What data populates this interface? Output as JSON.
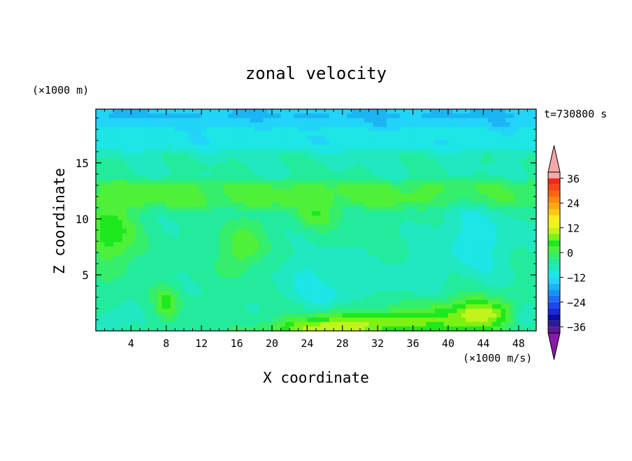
{
  "chart_data": {
    "type": "heatmap",
    "title": "zonal velocity",
    "xlabel": "X coordinate",
    "ylabel": "Z coordinate",
    "x_unit": "(×1000 m/s)",
    "y_unit": "(×1000 m)",
    "time_label": "t=730800 s",
    "xlim": [
      0,
      50
    ],
    "ylim": [
      0,
      19.8
    ],
    "x_ticks": [
      4,
      8,
      12,
      16,
      20,
      24,
      28,
      32,
      36,
      40,
      44,
      48
    ],
    "y_ticks": [
      5,
      10,
      15
    ],
    "colorbar": {
      "levels": [
        -42,
        -39,
        -36,
        -33,
        -30,
        -27,
        -24,
        -21,
        -18,
        -15,
        -12,
        -9,
        -6,
        -3,
        0,
        3,
        6,
        9,
        12,
        15,
        18,
        21,
        24,
        27,
        30,
        33,
        36,
        39,
        42
      ],
      "tick_labels": [
        "36",
        "24",
        "12",
        "0",
        "−12",
        "−24",
        "−36"
      ],
      "tick_values": [
        36,
        24,
        12,
        0,
        -12,
        -24,
        -36
      ],
      "colors": [
        "#8a18a6",
        "#5a1a9a",
        "#2a1a92",
        "#0e0ca6",
        "#1a2ad2",
        "#1c46f0",
        "#1e6cf6",
        "#1892ee",
        "#1cb4f4",
        "#22d4f8",
        "#1ce6e6",
        "#20e8c0",
        "#22ec9c",
        "#34ee6c",
        "#4ef03a",
        "#1ee81e",
        "#7cf214",
        "#c0f41a",
        "#ecf418",
        "#fcec1e",
        "#fcc814",
        "#fca812",
        "#fc8a10",
        "#fc6410",
        "#f84818",
        "#f02a18",
        "#f4a8a8"
      ],
      "under_color": "#8a18a6",
      "over_color": "#f4a8a8"
    },
    "field": {
      "background_value": -5,
      "features": [
        {
          "x": 25.5,
          "z": 4.0,
          "rx": 3.0,
          "rz": 1.6,
          "value": -14
        },
        {
          "x": 25.5,
          "z": 4.3,
          "rx": 5.5,
          "rz": 3.0,
          "value": -9
        },
        {
          "x": 43.0,
          "z": 8.0,
          "rx": 5.0,
          "rz": 3.5,
          "value": -11
        },
        {
          "x": 42.0,
          "z": 1.2,
          "rx": 6.0,
          "rz": 1.8,
          "value": 8
        },
        {
          "x": 44.0,
          "z": 1.5,
          "rx": 2.5,
          "rz": 1.0,
          "value": 12
        },
        {
          "x": 31.0,
          "z": 0.7,
          "rx": 9.0,
          "rz": 1.2,
          "value": 9
        },
        {
          "x": 26.0,
          "z": 0.3,
          "rx": 6.0,
          "rz": 0.6,
          "value": 11
        },
        {
          "x": 2.0,
          "z": 8.5,
          "rx": 3.0,
          "rz": 3.5,
          "value": 3
        },
        {
          "x": 1.5,
          "z": 9.0,
          "rx": 1.5,
          "rz": 2.0,
          "value": 6
        },
        {
          "x": 16.5,
          "z": 7.5,
          "rx": 2.5,
          "rz": 2.5,
          "value": 3
        },
        {
          "x": 25.0,
          "z": 10.5,
          "rx": 3.0,
          "rz": 1.5,
          "value": 2
        },
        {
          "x": 8.0,
          "z": 2.5,
          "rx": 1.5,
          "rz": 1.5,
          "value": 4
        },
        {
          "x": 1.5,
          "z": 0.8,
          "rx": 2.0,
          "rz": 1.0,
          "value": -10
        },
        {
          "x": 49.0,
          "z": 1.5,
          "rx": 1.5,
          "rz": 1.5,
          "value": -9
        },
        {
          "x": 36.0,
          "z": 5.0,
          "rx": 4.0,
          "rz": 2.0,
          "value": -8
        }
      ],
      "bands": [
        {
          "z_min": 11.0,
          "z_max": 13.5,
          "value": 1
        },
        {
          "z_min": 13.5,
          "z_max": 16.0,
          "value": -6
        },
        {
          "z_min": 16.0,
          "z_max": 18.0,
          "value": -11
        },
        {
          "z_min": 18.0,
          "z_max": 19.0,
          "value": -15
        },
        {
          "z_min": 19.0,
          "z_max": 19.8,
          "value": -19
        }
      ]
    }
  }
}
